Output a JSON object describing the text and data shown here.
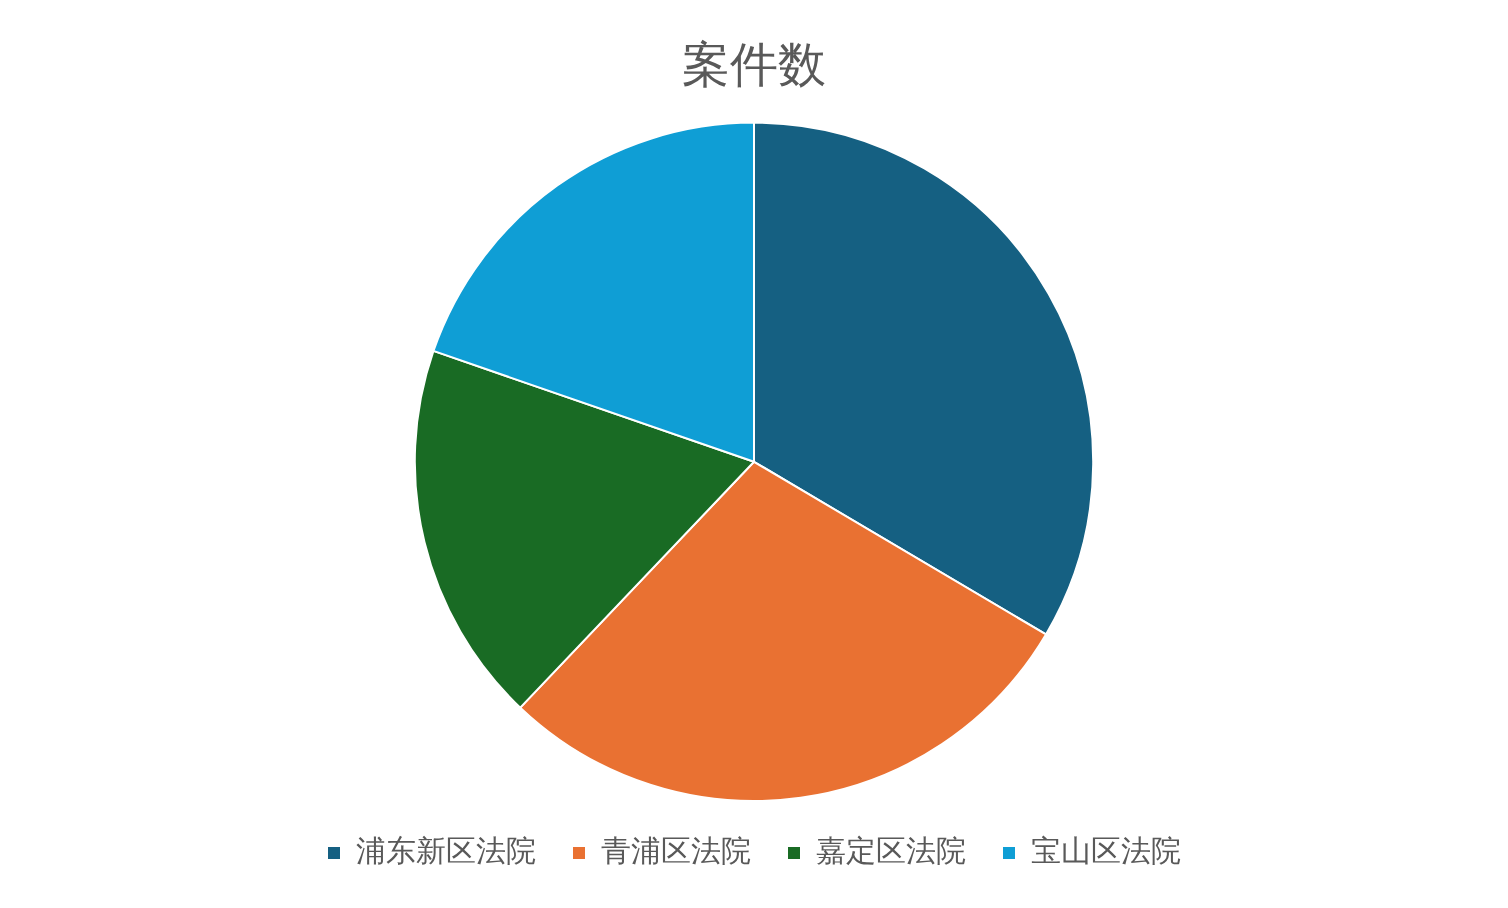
{
  "chart_data": {
    "type": "pie",
    "title": "案件数",
    "categories": [
      "浦东新区法院",
      "青浦区法院",
      "嘉定区法院",
      "宝山区法院"
    ],
    "values": [
      33.5,
      28.6,
      18.2,
      19.7
    ],
    "colors": [
      "#156082",
      "#e97132",
      "#196b24",
      "#0f9ed5"
    ],
    "legend": "bottom"
  }
}
